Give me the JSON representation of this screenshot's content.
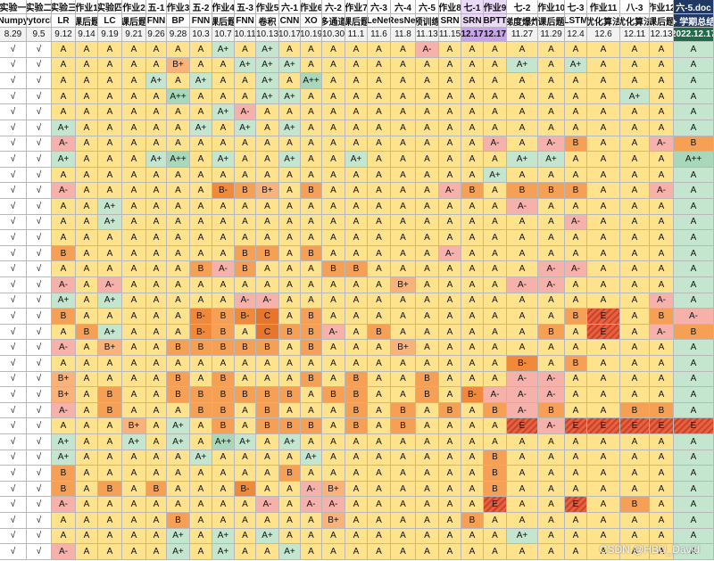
{
  "header": {
    "row1": [
      "实验一",
      "实验二",
      "实验三",
      "作业1",
      "实验四",
      "作业2",
      "五-1",
      "作业3",
      "五-2",
      "作业4",
      "五-3",
      "作业5",
      "六-1",
      "作业6",
      "六-2",
      "作业7",
      "六-3",
      "六-4",
      "六-5",
      "作业8",
      "七-1",
      "作业9",
      "七-2",
      "作业10",
      "七-3",
      "作业11",
      "八-3",
      "作业12",
      "六-5.doc"
    ],
    "row2": [
      "Numpy",
      "Pytorch",
      "LR",
      "课后题",
      "LC",
      "课后题",
      "FNN",
      "BP",
      "FNN",
      "课后题",
      "FNN",
      "卷积",
      "CNN",
      "XO",
      "多通道",
      "课后题",
      "LeNet",
      "ResNet",
      "预训练",
      "SRN",
      "SRN",
      "BPTT",
      "梯度爆炸",
      "课后题",
      "LSTM",
      "优化算法",
      "优化算法",
      "课后题",
      "+ 学期总结"
    ],
    "row3": [
      "8.29",
      "9.5",
      "9.12",
      "9.14",
      "9.19",
      "9.21",
      "9.26",
      "9.28",
      "10.3",
      "10.7",
      "10.11",
      "10.13",
      "10.17",
      "10.19",
      "10.30",
      "11.1",
      "11.6",
      "11.8",
      "11.13",
      "11.15",
      "12.17",
      "12.17",
      "11.27",
      "11.29",
      "12.4",
      "12.6",
      "12.11",
      "12.13",
      "2022.12.17"
    ]
  },
  "table": {
    "rows": [
      [
        "√",
        "√",
        "A",
        "A",
        "A",
        "A",
        "A",
        "A",
        "A",
        "A+",
        "A",
        "A+",
        "A",
        "A",
        "A",
        "A",
        "A",
        "A",
        "A-",
        "A",
        "A",
        "A",
        "A",
        "A",
        "A",
        "A",
        "A",
        "A",
        "A"
      ],
      [
        "√",
        "√",
        "A",
        "A",
        "A",
        "A",
        "A",
        "B+",
        "A",
        "A",
        "A+",
        "A+",
        "A+",
        "A",
        "A",
        "A",
        "A",
        "A",
        "A",
        "A",
        "A",
        "A",
        "A+",
        "A",
        "A+",
        "A",
        "A",
        "A",
        "A"
      ],
      [
        "√",
        "√",
        "A",
        "A",
        "A",
        "A",
        "A+",
        "A",
        "A+",
        "A",
        "A",
        "A+",
        "A",
        "A++",
        "A",
        "A",
        "A",
        "A",
        "A",
        "A",
        "A",
        "A",
        "A",
        "A",
        "A",
        "A",
        "A",
        "A",
        "A"
      ],
      [
        "√",
        "√",
        "A",
        "A",
        "A",
        "A",
        "A",
        "A++",
        "A",
        "A",
        "A",
        "A+",
        "A+",
        "A",
        "A",
        "A",
        "A",
        "A",
        "A",
        "A",
        "A",
        "A",
        "A",
        "A",
        "A",
        "A",
        "A+",
        "A",
        "A"
      ],
      [
        "√",
        "√",
        "A",
        "A",
        "A",
        "A",
        "A",
        "A",
        "A",
        "A+",
        "A-",
        "A",
        "A",
        "A",
        "A",
        "A",
        "A",
        "A",
        "A",
        "A",
        "A",
        "A",
        "A",
        "A",
        "A",
        "A",
        "A",
        "A",
        "A"
      ],
      [
        "√",
        "√",
        "A+",
        "A",
        "A",
        "A",
        "A",
        "A",
        "A+",
        "A",
        "A+",
        "A",
        "A+",
        "A",
        "A",
        "A",
        "A",
        "A",
        "A",
        "A",
        "A",
        "A",
        "A",
        "A",
        "A",
        "A",
        "A",
        "A",
        "A"
      ],
      [
        "√",
        "√",
        "A-",
        "A",
        "A",
        "A",
        "A",
        "A",
        "A",
        "A",
        "A",
        "A",
        "A",
        "A",
        "A",
        "A",
        "A",
        "A",
        "A",
        "A",
        "A",
        "A-",
        "A",
        "A-",
        "B",
        "A",
        "A",
        "A-",
        "B"
      ],
      [
        "√",
        "√",
        "A+",
        "A",
        "A",
        "A",
        "A+",
        "A++",
        "A",
        "A+",
        "A",
        "A",
        "A+",
        "A",
        "A",
        "A+",
        "A",
        "A",
        "A",
        "A",
        "A",
        "A",
        "A+",
        "A+",
        "A",
        "A",
        "A",
        "A",
        "A++"
      ],
      [
        "√",
        "√",
        "A",
        "A",
        "A",
        "A",
        "A",
        "A",
        "A",
        "A",
        "A",
        "A",
        "A",
        "A",
        "A",
        "A",
        "A",
        "A",
        "A",
        "A",
        "A",
        "A+",
        "A",
        "A",
        "A",
        "A",
        "A",
        "A",
        "A"
      ],
      [
        "√",
        "√",
        "A-",
        "A",
        "A",
        "A",
        "A",
        "A",
        "A",
        "B-",
        "B",
        "B+",
        "A",
        "B",
        "A",
        "A",
        "A",
        "A",
        "A",
        "A-",
        "B",
        "A",
        "B",
        "B",
        "B",
        "A",
        "A",
        "A-",
        "A"
      ],
      [
        "√",
        "√",
        "A",
        "A",
        "A+",
        "A",
        "A",
        "A",
        "A",
        "A",
        "A",
        "A",
        "A",
        "A",
        "A",
        "A",
        "A",
        "A",
        "A",
        "A",
        "A",
        "A",
        "A-",
        "A",
        "A",
        "A",
        "A",
        "A",
        "A"
      ],
      [
        "√",
        "√",
        "A",
        "A",
        "A+",
        "A",
        "A",
        "A",
        "A",
        "A",
        "A",
        "A",
        "A",
        "A",
        "A",
        "A",
        "A",
        "A",
        "A",
        "A",
        "A",
        "A",
        "A",
        "A",
        "A-",
        "A",
        "A",
        "A",
        "A"
      ],
      [
        "√",
        "√",
        "A",
        "A",
        "A",
        "A",
        "A",
        "A",
        "A",
        "A",
        "A",
        "A",
        "A",
        "A",
        "A",
        "A",
        "A",
        "A",
        "A",
        "A",
        "A",
        "A",
        "A",
        "A",
        "A",
        "A",
        "A",
        "A",
        "A"
      ],
      [
        "√",
        "√",
        "B",
        "A",
        "A",
        "A",
        "A",
        "A",
        "A",
        "A",
        "B",
        "B",
        "A",
        "B",
        "A",
        "A",
        "A",
        "A",
        "A",
        "A-",
        "A",
        "A",
        "A",
        "A",
        "A",
        "A",
        "A",
        "A",
        "A"
      ],
      [
        "√",
        "√",
        "A",
        "A",
        "A",
        "A",
        "A",
        "A",
        "B",
        "A-",
        "B",
        "A",
        "A",
        "A",
        "B",
        "B",
        "A",
        "A",
        "A",
        "A",
        "A",
        "A",
        "A",
        "A-",
        "A-",
        "A",
        "A",
        "A",
        "A"
      ],
      [
        "√",
        "√",
        "A-",
        "A",
        "A-",
        "A",
        "A",
        "A",
        "A",
        "A",
        "A",
        "A",
        "A",
        "A",
        "A",
        "A",
        "A",
        "B+",
        "A",
        "A",
        "A",
        "A",
        "A-",
        "A-",
        "A",
        "A",
        "A",
        "A",
        "A"
      ],
      [
        "√",
        "√",
        "A+",
        "A",
        "A+",
        "A",
        "A",
        "A",
        "A",
        "A",
        "A-",
        "A-",
        "A",
        "A",
        "A",
        "A",
        "A",
        "A",
        "A",
        "A",
        "A",
        "A",
        "A",
        "A",
        "A",
        "A",
        "A",
        "A-",
        "A"
      ],
      [
        "√",
        "√",
        "B",
        "A",
        "A",
        "A",
        "A",
        "A",
        "B-",
        "B",
        "B-",
        "C",
        "A",
        "B",
        "A",
        "A",
        "A",
        "A",
        "A",
        "A",
        "A",
        "A",
        "A",
        "A",
        "B",
        "E",
        "A",
        "B",
        "A-"
      ],
      [
        "√",
        "√",
        "A",
        "B",
        "A+",
        "A",
        "A",
        "A",
        "B-",
        "B",
        "A",
        "C",
        "B",
        "B",
        "A-",
        "A",
        "B",
        "A",
        "A",
        "A",
        "A",
        "A",
        "A",
        "B",
        "A",
        "E",
        "A",
        "A-",
        "B"
      ],
      [
        "√",
        "√",
        "A-",
        "A",
        "B+",
        "A",
        "A",
        "B",
        "B",
        "B",
        "B",
        "B",
        "A",
        "B",
        "A",
        "A",
        "A",
        "B+",
        "A",
        "A",
        "A",
        "A",
        "A",
        "A",
        "A",
        "A",
        "A",
        "A",
        "A"
      ],
      [
        "√",
        "√",
        "A",
        "A",
        "A",
        "A",
        "A",
        "A",
        "A",
        "A",
        "A",
        "A",
        "A",
        "A",
        "A",
        "A",
        "A",
        "A",
        "A",
        "A",
        "A",
        "A",
        "B-",
        "A",
        "B",
        "A",
        "A",
        "A",
        "A"
      ],
      [
        "√",
        "√",
        "B+",
        "A",
        "A",
        "A",
        "A",
        "B",
        "A",
        "B",
        "A",
        "A",
        "A",
        "B",
        "A",
        "B",
        "A",
        "A",
        "B",
        "A",
        "A",
        "A",
        "A-",
        "A-",
        "A",
        "A",
        "A",
        "A",
        "A"
      ],
      [
        "√",
        "√",
        "B+",
        "A",
        "B",
        "A",
        "A",
        "B",
        "B",
        "B",
        "B",
        "B",
        "B",
        "A",
        "B",
        "B",
        "A",
        "A",
        "B",
        "A",
        "B-",
        "A-",
        "A-",
        "A-",
        "A",
        "A",
        "A",
        "A",
        "A"
      ],
      [
        "√",
        "√",
        "A-",
        "A",
        "B",
        "A",
        "A",
        "A",
        "B",
        "B",
        "A",
        "B",
        "A",
        "A",
        "A",
        "B",
        "A",
        "B",
        "A",
        "B",
        "A",
        "B",
        "A-",
        "B",
        "A",
        "A",
        "B",
        "B",
        "A"
      ],
      [
        "√",
        "√",
        "A",
        "A",
        "A",
        "B+",
        "A",
        "A+",
        "A",
        "B",
        "A",
        "B",
        "B",
        "B",
        "A",
        "B",
        "A",
        "B",
        "A",
        "A",
        "A",
        "A",
        "E",
        "A-",
        "E",
        "E",
        "E",
        "E",
        "E"
      ],
      [
        "√",
        "√",
        "A+",
        "A",
        "A",
        "A+",
        "A",
        "A+",
        "A",
        "A++",
        "A+",
        "A",
        "A+",
        "A",
        "A",
        "A",
        "A",
        "A",
        "A",
        "A",
        "A",
        "A",
        "A",
        "A",
        "A",
        "A",
        "A",
        "A",
        "A"
      ],
      [
        "√",
        "√",
        "A+",
        "A",
        "A",
        "A",
        "A",
        "A",
        "A+",
        "A",
        "A",
        "A",
        "A",
        "A+",
        "A",
        "A",
        "A",
        "A",
        "A",
        "A",
        "A",
        "B",
        "A",
        "A",
        "A",
        "A",
        "A",
        "A",
        "A"
      ],
      [
        "√",
        "√",
        "B",
        "A",
        "A",
        "A",
        "A",
        "A",
        "A",
        "A",
        "A",
        "A",
        "B",
        "A",
        "A",
        "A",
        "A",
        "A",
        "A",
        "A",
        "A",
        "B",
        "A",
        "A",
        "A",
        "A",
        "A",
        "A",
        "A"
      ],
      [
        "√",
        "√",
        "B",
        "A",
        "B",
        "A",
        "B",
        "A",
        "A",
        "A",
        "B-",
        "A",
        "A",
        "A-",
        "B+",
        "A",
        "A",
        "A",
        "A",
        "A",
        "A",
        "B",
        "A",
        "A",
        "A",
        "A",
        "A",
        "A",
        "A"
      ],
      [
        "√",
        "√",
        "A-",
        "A",
        "A",
        "A",
        "A",
        "A",
        "A",
        "A",
        "A",
        "A-",
        "A",
        "A-",
        "A-",
        "A",
        "A",
        "A",
        "A",
        "A",
        "A",
        "E",
        "A",
        "A",
        "E",
        "A",
        "B",
        "A",
        "A"
      ],
      [
        "√",
        "√",
        "A",
        "A",
        "A",
        "A",
        "A",
        "B",
        "A",
        "A",
        "A",
        "A",
        "A",
        "A",
        "B+",
        "A",
        "A",
        "A",
        "A",
        "A",
        "B",
        "A",
        "A",
        "A",
        "A",
        "A",
        "A",
        "A",
        "A"
      ],
      [
        "√",
        "√",
        "A",
        "A",
        "A",
        "A",
        "A",
        "A+",
        "A",
        "A+",
        "A",
        "A+",
        "A",
        "A",
        "A",
        "A",
        "A",
        "A",
        "A",
        "A",
        "A",
        "A",
        "A+",
        "A",
        "A",
        "A",
        "A",
        "A",
        "A"
      ],
      [
        "√",
        "√",
        "A-",
        "A",
        "A",
        "A",
        "A",
        "A+",
        "A",
        "A+",
        "A",
        "A",
        "A+",
        "A",
        "A",
        "A",
        "A",
        "A",
        "A",
        "A",
        "A",
        "A",
        "A",
        "A",
        "A",
        "A",
        "A",
        "A",
        "A"
      ]
    ]
  },
  "watermark": "CSDN @HBU_David"
}
